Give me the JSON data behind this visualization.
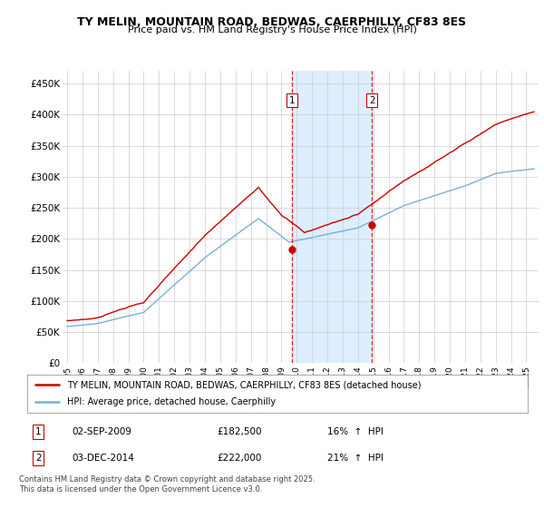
{
  "title_line1": "TY MELIN, MOUNTAIN ROAD, BEDWAS, CAERPHILLY, CF83 8ES",
  "title_line2": "Price paid vs. HM Land Registry's House Price Index (HPI)",
  "ylabel_ticks": [
    "£0",
    "£50K",
    "£100K",
    "£150K",
    "£200K",
    "£250K",
    "£300K",
    "£350K",
    "£400K",
    "£450K"
  ],
  "ytick_values": [
    0,
    50000,
    100000,
    150000,
    200000,
    250000,
    300000,
    350000,
    400000,
    450000
  ],
  "ylim": [
    0,
    470000
  ],
  "xlim_start": 1994.7,
  "xlim_end": 2025.8,
  "marker1": {
    "date_num": 2009.67,
    "price": 182500,
    "label": "1",
    "date_str": "02-SEP-2009",
    "pct": "16%",
    "direction": "↑"
  },
  "marker2": {
    "date_num": 2014.92,
    "price": 222000,
    "label": "2",
    "date_str": "03-DEC-2014",
    "pct": "21%",
    "direction": "↑"
  },
  "legend_line1": "TY MELIN, MOUNTAIN ROAD, BEDWAS, CAERPHILLY, CF83 8ES (detached house)",
  "legend_line2": "HPI: Average price, detached house, Caerphilly",
  "footer_line1": "Contains HM Land Registry data © Crown copyright and database right 2025.",
  "footer_line2": "This data is licensed under the Open Government Licence v3.0.",
  "red_color": "#cc0000",
  "blue_color": "#7bafd4",
  "shading_color": "#ddeeff",
  "background_color": "#ffffff",
  "grid_color": "#cccccc"
}
